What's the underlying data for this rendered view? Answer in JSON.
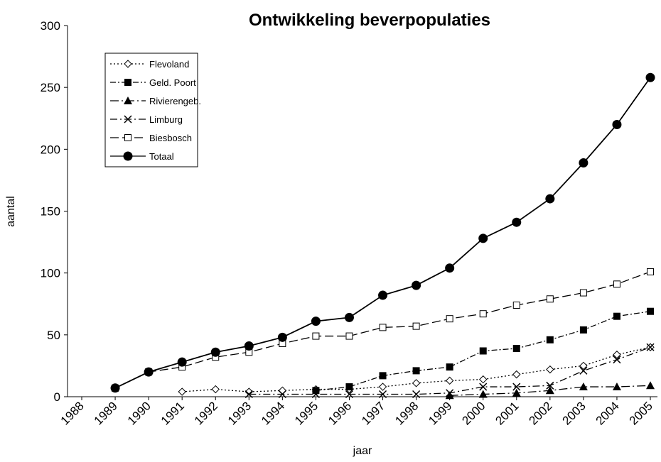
{
  "chart_data": {
    "type": "line",
    "title": "Ontwikkeling beverpopulaties",
    "x_label": "jaar",
    "y_label": "aantal",
    "categories": [
      "1988",
      "1989",
      "1990",
      "1991",
      "1992",
      "1993",
      "1994",
      "1995",
      "1996",
      "1997",
      "1998",
      "1999",
      "2000",
      "2001",
      "2002",
      "2003",
      "2004",
      "2005"
    ],
    "ylim": [
      0,
      300
    ],
    "yticks": [
      0,
      50,
      100,
      150,
      200,
      250,
      300
    ],
    "grid": false,
    "legend": "upper left",
    "series": [
      {
        "name": "Flevoland",
        "color": "#000000",
        "marker": "diamond-open",
        "dash": "2,3",
        "values": [
          null,
          null,
          null,
          4,
          6,
          4,
          5,
          6,
          6,
          8,
          11,
          13,
          14,
          18,
          22,
          25,
          34,
          40
        ]
      },
      {
        "name": "Geld. Poort",
        "color": "#000000",
        "marker": "square",
        "dash": "8,3,2,3",
        "values": [
          null,
          null,
          null,
          null,
          null,
          null,
          null,
          5,
          8,
          17,
          21,
          24,
          37,
          39,
          46,
          54,
          65,
          69
        ]
      },
      {
        "name": "Rivierengeb.",
        "color": "#000000",
        "marker": "triangle",
        "dash": "12,4,2,4",
        "values": [
          null,
          null,
          null,
          null,
          null,
          null,
          null,
          null,
          null,
          null,
          null,
          1,
          2,
          3,
          5,
          8,
          8,
          9
        ]
      },
      {
        "name": "Limburg",
        "color": "#000000",
        "marker": "x",
        "dash": "10,4,2,4",
        "values": [
          null,
          null,
          null,
          null,
          null,
          2,
          2,
          2,
          2,
          2,
          2,
          3,
          8,
          8,
          9,
          21,
          30,
          40
        ]
      },
      {
        "name": "Biesbosch",
        "color": "#000000",
        "marker": "square-open",
        "dash": "12,5",
        "values": [
          null,
          7,
          20,
          24,
          32,
          36,
          43,
          49,
          49,
          56,
          57,
          63,
          67,
          74,
          79,
          84,
          91,
          101
        ]
      },
      {
        "name": "Totaal",
        "color": "#000000",
        "marker": "circle",
        "dash": "",
        "values": [
          null,
          7,
          20,
          28,
          36,
          41,
          48,
          61,
          64,
          82,
          90,
          104,
          128,
          141,
          160,
          189,
          220,
          258
        ]
      }
    ]
  }
}
